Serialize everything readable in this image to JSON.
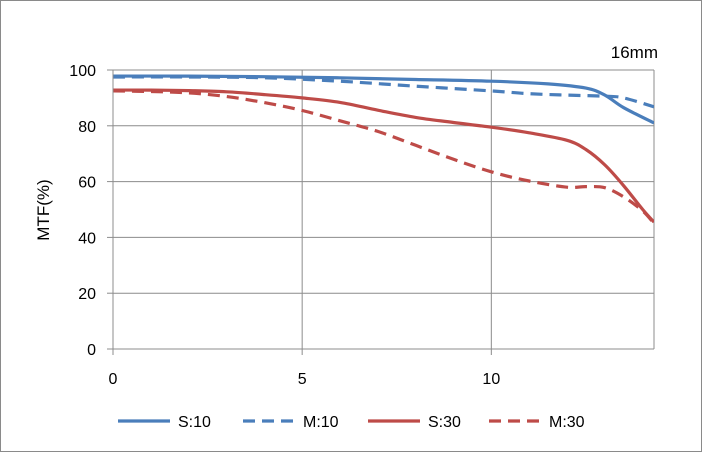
{
  "chart_data": {
    "type": "line",
    "title": "16mm",
    "xlabel": "",
    "ylabel": "MTF(%)",
    "xlim": [
      0,
      14.3
    ],
    "ylim": [
      0,
      100
    ],
    "x_ticks": [
      0,
      5,
      10
    ],
    "y_ticks": [
      0,
      20,
      40,
      60,
      80,
      100
    ],
    "grid": true,
    "legend_position": "bottom",
    "series": [
      {
        "name": "S:10",
        "color": "#4a7ebb",
        "dash": "solid",
        "points": [
          [
            0,
            97.8
          ],
          [
            2,
            97.8
          ],
          [
            4,
            97.6
          ],
          [
            6,
            97.2
          ],
          [
            8,
            96.6
          ],
          [
            10,
            96
          ],
          [
            11.5,
            95
          ],
          [
            12.5,
            93.5
          ],
          [
            13,
            91
          ],
          [
            13.5,
            86.5
          ],
          [
            14.3,
            81
          ]
        ]
      },
      {
        "name": "M:10",
        "color": "#4a7ebb",
        "dash": "dashed",
        "points": [
          [
            0,
            97.5
          ],
          [
            2,
            97.5
          ],
          [
            4,
            97.2
          ],
          [
            6,
            96
          ],
          [
            8,
            94.2
          ],
          [
            10,
            92.5
          ],
          [
            11,
            91.5
          ],
          [
            12,
            91
          ],
          [
            13,
            90.6
          ],
          [
            13.5,
            90
          ],
          [
            14.3,
            86.8
          ]
        ]
      },
      {
        "name": "S:30",
        "color": "#be4b48",
        "dash": "solid",
        "points": [
          [
            0,
            92.8
          ],
          [
            1,
            92.8
          ],
          [
            2,
            92.6
          ],
          [
            3,
            92.2
          ],
          [
            4,
            91.2
          ],
          [
            5,
            90
          ],
          [
            6,
            88.4
          ],
          [
            7,
            85.6
          ],
          [
            8,
            83
          ],
          [
            9,
            81.2
          ],
          [
            10,
            79.5
          ],
          [
            11,
            77.5
          ],
          [
            12,
            74.8
          ],
          [
            12.5,
            71.5
          ],
          [
            13,
            66
          ],
          [
            13.5,
            58.5
          ],
          [
            14,
            50
          ],
          [
            14.3,
            45.5
          ]
        ]
      },
      {
        "name": "M:30",
        "color": "#be4b48",
        "dash": "dashed",
        "points": [
          [
            0,
            92.5
          ],
          [
            1,
            92.3
          ],
          [
            2,
            91.8
          ],
          [
            3,
            90.5
          ],
          [
            4,
            88.3
          ],
          [
            5,
            85.5
          ],
          [
            6,
            81.8
          ],
          [
            7,
            78
          ],
          [
            8,
            73
          ],
          [
            9,
            68
          ],
          [
            10,
            63.5
          ],
          [
            11,
            60.2
          ],
          [
            12,
            58
          ],
          [
            12.5,
            58.2
          ],
          [
            13,
            57.8
          ],
          [
            13.5,
            54.5
          ],
          [
            14,
            49.5
          ],
          [
            14.3,
            45
          ]
        ]
      }
    ]
  }
}
